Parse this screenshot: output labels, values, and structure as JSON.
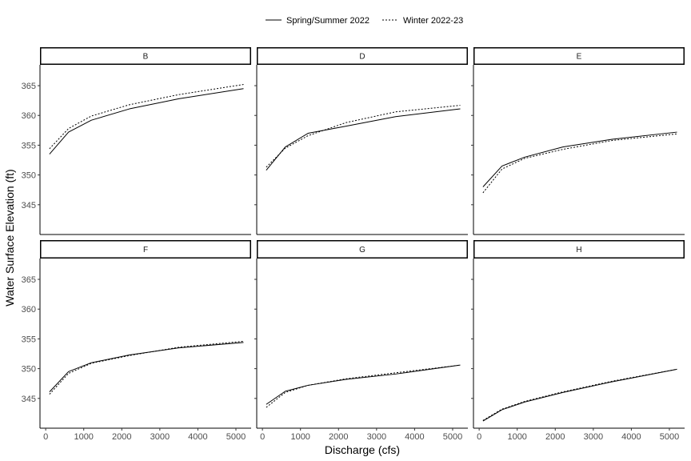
{
  "chart_data": {
    "type": "line",
    "xlabel": "Discharge (cfs)",
    "ylabel": "Water Surface Elevation (ft)",
    "xlim": [
      -150,
      5400
    ],
    "ylim": [
      340,
      368.5
    ],
    "x_ticks": [
      0,
      1000,
      2000,
      3000,
      4000,
      5000
    ],
    "y_ticks": [
      345,
      350,
      355,
      360,
      365
    ],
    "legend_position": "top",
    "series_styles": [
      {
        "name": "Spring/Summer 2022",
        "dash": "solid",
        "color": "#000000"
      },
      {
        "name": "Winter 2022-23",
        "dash": "dotted",
        "color": "#000000"
      }
    ],
    "panels": [
      {
        "label": "B",
        "series": [
          {
            "name": "Spring/Summer 2022",
            "x": [
              100,
              600,
              1200,
              2200,
              3500,
              5200
            ],
            "y": [
              353.5,
              357.2,
              359.2,
              361.1,
              362.8,
              364.5
            ]
          },
          {
            "name": "Winter 2022-23",
            "x": [
              100,
              600,
              1200,
              2200,
              3500,
              5200
            ],
            "y": [
              354.4,
              357.8,
              359.9,
              361.8,
              363.5,
              365.2
            ]
          }
        ]
      },
      {
        "label": "D",
        "series": [
          {
            "name": "Spring/Summer 2022",
            "x": [
              100,
              600,
              1200,
              2200,
              3500,
              5200
            ],
            "y": [
              350.8,
              354.7,
              357.0,
              358.2,
              359.8,
              361.1
            ]
          },
          {
            "name": "Winter 2022-23",
            "x": [
              100,
              600,
              1200,
              2200,
              3500,
              5200
            ],
            "y": [
              351.3,
              354.5,
              356.6,
              358.8,
              360.6,
              361.7
            ]
          }
        ]
      },
      {
        "label": "E",
        "series": [
          {
            "name": "Spring/Summer 2022",
            "x": [
              100,
              600,
              1200,
              2200,
              3500,
              5200
            ],
            "y": [
              348.0,
              351.5,
              353.0,
              354.7,
              356.0,
              357.2
            ]
          },
          {
            "name": "Winter 2022-23",
            "x": [
              100,
              600,
              1200,
              2200,
              3500,
              5200
            ],
            "y": [
              347.0,
              351.0,
              352.8,
              354.3,
              355.8,
              356.9
            ]
          }
        ]
      },
      {
        "label": "F",
        "series": [
          {
            "name": "Spring/Summer 2022",
            "x": [
              100,
              600,
              1200,
              2200,
              3500,
              5200
            ],
            "y": [
              346.1,
              349.5,
              351.0,
              352.3,
              353.5,
              354.4
            ]
          },
          {
            "name": "Winter 2022-23",
            "x": [
              100,
              600,
              1200,
              2200,
              3500,
              5200
            ],
            "y": [
              345.7,
              349.2,
              350.9,
              352.2,
              353.6,
              354.6
            ]
          }
        ]
      },
      {
        "label": "G",
        "series": [
          {
            "name": "Spring/Summer 2022",
            "x": [
              100,
              600,
              1200,
              2200,
              3500,
              5200
            ],
            "y": [
              344.0,
              346.2,
              347.2,
              348.2,
              349.1,
              350.6
            ]
          },
          {
            "name": "Winter 2022-23",
            "x": [
              100,
              600,
              1200,
              2200,
              3500,
              5200
            ],
            "y": [
              343.5,
              346.0,
              347.2,
              348.3,
              349.3,
              350.6
            ]
          }
        ]
      },
      {
        "label": "H",
        "series": [
          {
            "name": "Spring/Summer 2022",
            "x": [
              100,
              600,
              1200,
              2200,
              3500,
              5200
            ],
            "y": [
              341.2,
              343.1,
              344.4,
              346.0,
              347.8,
              349.9
            ]
          },
          {
            "name": "Winter 2022-23",
            "x": [
              100,
              600,
              1200,
              2200,
              3500,
              5200
            ],
            "y": [
              341.3,
              343.2,
              344.5,
              346.1,
              347.9,
              349.9
            ]
          }
        ]
      }
    ]
  }
}
